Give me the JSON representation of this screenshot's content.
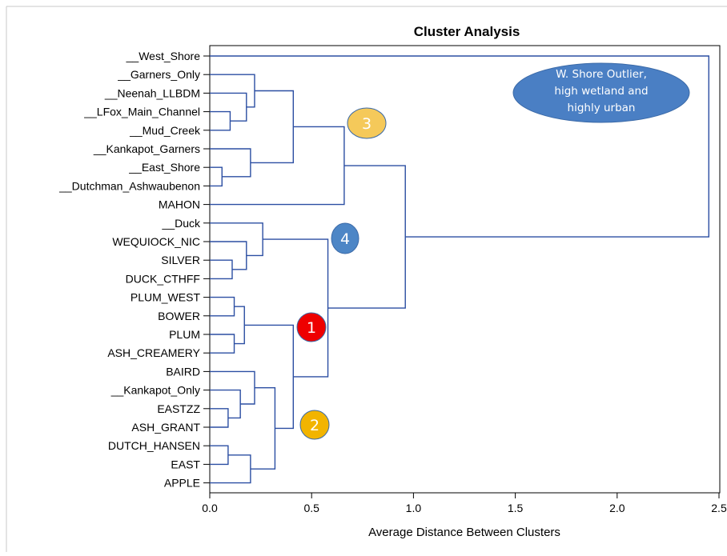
{
  "chart_data": {
    "type": "dendrogram",
    "title": "Cluster Analysis",
    "xlabel": "Average Distance Between Clusters",
    "xlim": [
      0,
      2.5
    ],
    "xticks": [
      "0.0",
      "0.5",
      "1.0",
      "1.5",
      "2.0",
      "2.5"
    ],
    "grid": false,
    "line_color": "#2b4ea2",
    "leaves": [
      "__West_Shore",
      "__Garners_Only",
      "__Neenah_LLBDM",
      "__LFox_Main_Channel",
      "__Mud_Creek",
      "__Kankapot_Garners",
      "__East_Shore",
      "__Dutchman_Ashwaubenon",
      "MAHON",
      "__Duck",
      "WEQUIOCK_NIC",
      "SILVER",
      "DUCK_CTHFF",
      "PLUM_WEST",
      "BOWER",
      "PLUM",
      "ASH_CREAMERY",
      "BAIRD",
      "__Kankapot_Only",
      "EASTZZ",
      "ASH_GRANT",
      "DUTCH_HANSEN",
      "EAST",
      "APPLE"
    ],
    "merges": [
      {
        "a": "L3",
        "b": "L4",
        "h": 0.1
      },
      {
        "a": "L6",
        "b": "L7",
        "h": 0.06
      },
      {
        "a": "L2",
        "b": "M0",
        "h": 0.18
      },
      {
        "a": "L1",
        "b": "M2",
        "h": 0.22
      },
      {
        "a": "L5",
        "b": "M1",
        "h": 0.2
      },
      {
        "a": "M3",
        "b": "M4",
        "h": 0.41
      },
      {
        "a": "M5",
        "b": "L8",
        "h": 0.66
      },
      {
        "a": "L11",
        "b": "L12",
        "h": 0.11
      },
      {
        "a": "L10",
        "b": "M7",
        "h": 0.18
      },
      {
        "a": "L9",
        "b": "M8",
        "h": 0.26
      },
      {
        "a": "L13",
        "b": "L14",
        "h": 0.12
      },
      {
        "a": "L15",
        "b": "L16",
        "h": 0.12
      },
      {
        "a": "M10",
        "b": "M11",
        "h": 0.17
      },
      {
        "a": "L19",
        "b": "L20",
        "h": 0.09
      },
      {
        "a": "L18",
        "b": "M13",
        "h": 0.15
      },
      {
        "a": "L17",
        "b": "M14",
        "h": 0.22
      },
      {
        "a": "L21",
        "b": "L22",
        "h": 0.09
      },
      {
        "a": "M16",
        "b": "L23",
        "h": 0.2
      },
      {
        "a": "M15",
        "b": "M17",
        "h": 0.32
      },
      {
        "a": "M12",
        "b": "M18",
        "h": 0.41
      },
      {
        "a": "M9",
        "b": "M19",
        "h": 0.58
      },
      {
        "a": "M6",
        "b": "M20",
        "h": 0.96
      },
      {
        "a": "L0",
        "b": "M21",
        "h": 2.45
      }
    ],
    "annotations": {
      "outlier_note": {
        "text_lines": [
          "W. Shore Outlier,",
          "high wetland and",
          "highly urban"
        ],
        "color": "#4a7fc4"
      },
      "cluster_labels": [
        {
          "label": "1",
          "color": "#ee0000"
        },
        {
          "label": "2",
          "color": "#f2b400"
        },
        {
          "label": "3",
          "color": "#f5c95a"
        },
        {
          "label": "4",
          "color": "#4d86c6"
        }
      ]
    }
  }
}
